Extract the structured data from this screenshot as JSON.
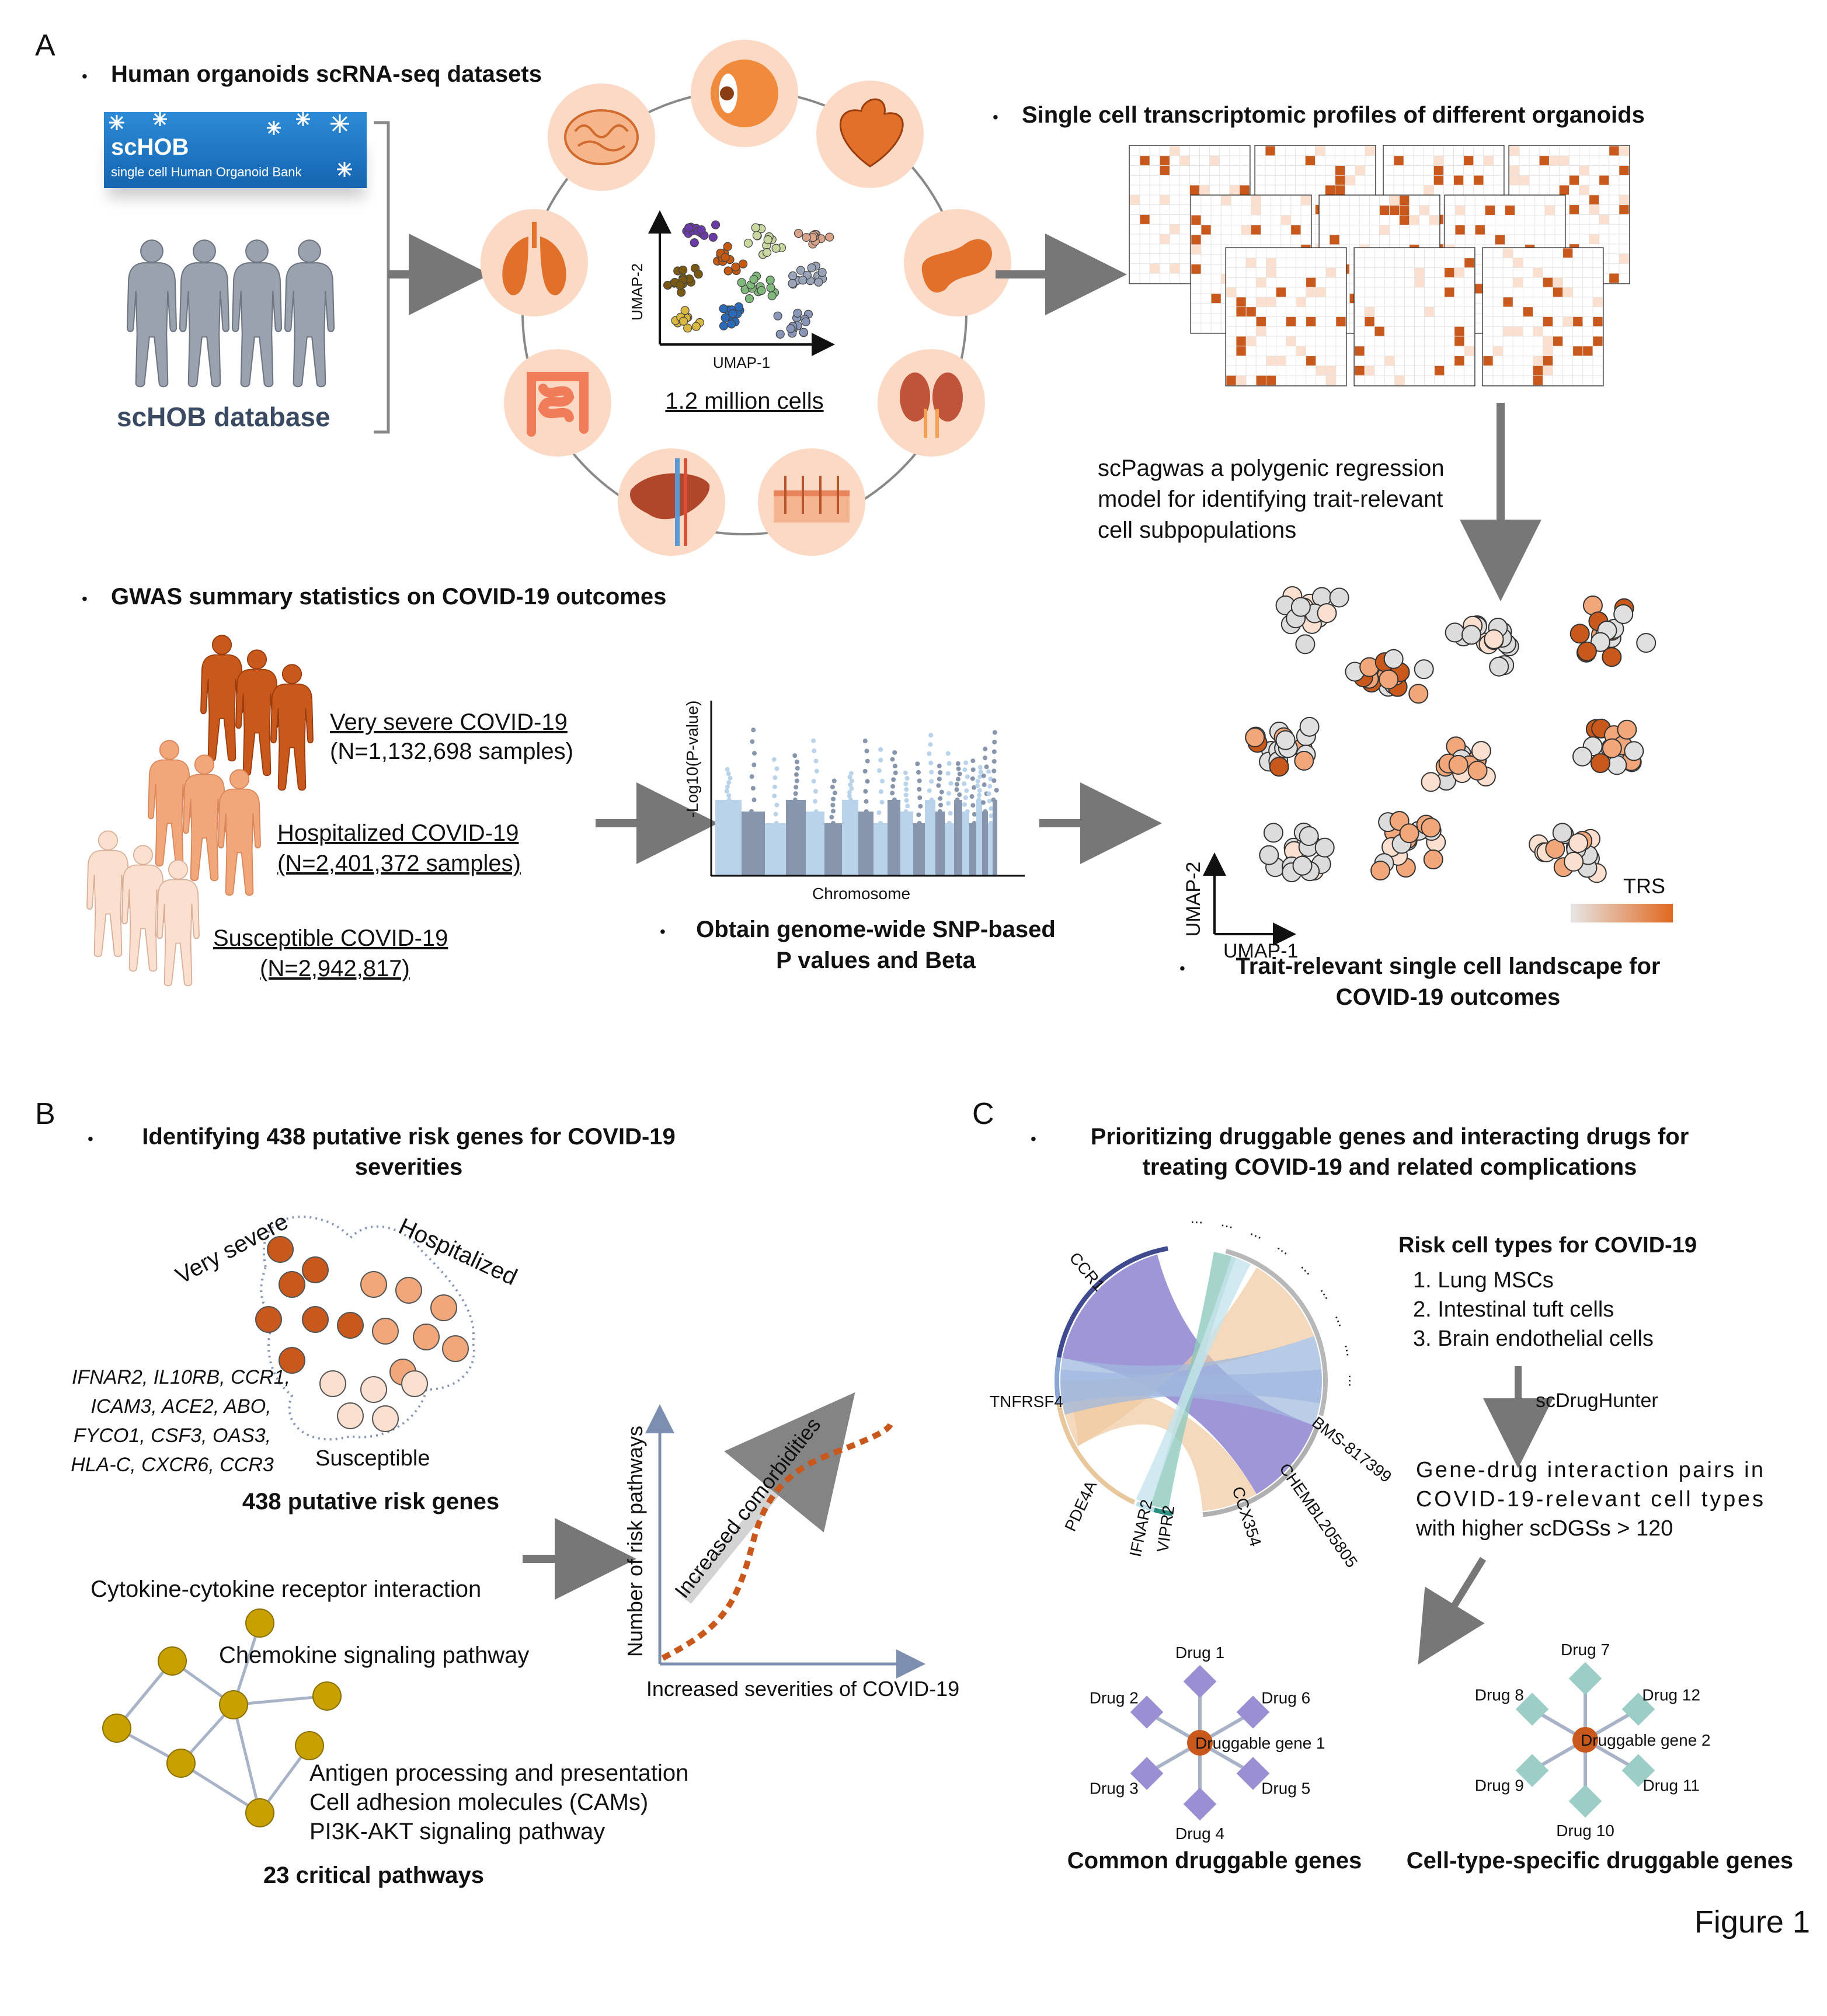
{
  "panels": {
    "a": {
      "letter": "A",
      "title": "Human organoids scRNA-seq datasets",
      "bank_name": "scHOB",
      "bank_full": "single cell Human Organoid Bank",
      "db_label": "scHOB database",
      "umap_x": "UMAP-1",
      "umap_y": "UMAP-2",
      "cells": "1.2 million cells",
      "profiles_title": "Single cell transcriptomic profiles of different organoids",
      "scpagwas": [
        "scPagwas a polygenic regression",
        "model for identifying trait-relevant",
        "cell subpopulations"
      ],
      "gwas_title": "GWAS summary statistics on COVID-19 outcomes",
      "very_severe": "Very severe COVID-19",
      "very_severe_n": "(N=1,132,698 samples)",
      "hospitalized": "Hospitalized COVID-19",
      "hospitalized_n": "(N=2,401,372 samples)",
      "susceptible": "Susceptible COVID-19",
      "susceptible_n": "(N=2,942,817)",
      "manhattan_y": "-Log10(P-value)",
      "manhattan_x": "Chromosome",
      "obtain": [
        "Obtain genome-wide SNP-based",
        "P values and Beta"
      ],
      "trs": "TRS",
      "landscape": [
        "Trait-relevant single cell landscape for",
        "COVID-19 outcomes"
      ]
    },
    "b": {
      "letter": "B",
      "title": [
        "Identifying 438 putative risk genes for COVID-19",
        "severities"
      ],
      "very_severe": "Very severe",
      "hospitalized": "Hospitalized",
      "susceptible": "Susceptible",
      "genes": [
        "IFNAR2, IL10RB, CCR1,",
        "ICAM3, ACE2, ABO,",
        "FYCO1, CSF3, OAS3,",
        "HLA-C, CXCR6, CCR3"
      ],
      "risk_genes": "438 putative risk genes",
      "pathways": [
        "Cytokine-cytokine receptor interaction",
        "Chemokine signaling pathway",
        "Antigen processing and presentation",
        "Cell adhesion molecules (CAMs)",
        "PI3K-AKT signaling pathway"
      ],
      "critical": "23 critical pathways",
      "y_axis": "Number of risk pathways",
      "x_axis": "Increased severities of COVID-19",
      "comorb": "Increased comorbidities"
    },
    "c": {
      "letter": "C",
      "title": [
        "Prioritizing druggable genes and interacting drugs for",
        "treating COVID-19 and related complications"
      ],
      "chord_labels": [
        "CCR1",
        "TNFRSF4",
        "PDE4A",
        "IFNAR2",
        "VIPR2",
        "CCX354",
        "CHEMBL205805",
        "BMS-817399"
      ],
      "risk_title": "Risk cell types for COVID-19",
      "risk_list": [
        "1.    Lung MSCs",
        "2.    Intestinal tuft cells",
        "3.    Brain endothelial cells"
      ],
      "tool": "scDrugHunter",
      "pairs": [
        "Gene-drug  interaction  pairs  in",
        "COVID-19-relevant   cell   types",
        "with higher scDGSs > 120"
      ],
      "gene1": "Druggable gene 1",
      "drugs1": [
        "Drug 1",
        "Drug 6",
        "Drug 5",
        "Drug 4",
        "Drug 3",
        "Drug 2"
      ],
      "gene2": "Druggable gene 2",
      "drugs2": [
        "Drug 7",
        "Drug 12",
        "Drug 11",
        "Drug 10",
        "Drug 9",
        "Drug 8"
      ],
      "common": "Common druggable genes",
      "specific": "Cell-type-specific druggable genes"
    }
  },
  "figure_label": "Figure 1",
  "colors": {
    "dark_orange": "#c8581b",
    "mid_orange": "#f2a77b",
    "light_orange": "#fbe0cf",
    "peach_circle": "#fbd9c4",
    "gray_blue": "#8896ad",
    "light_blue": "#b9d3ea",
    "purple": "#9a8fd3",
    "teal": "#9ccdc6",
    "gold": "#c8a100",
    "banner_blue": "#1f78c8"
  },
  "icons": [
    "brain-icon",
    "eye-icon",
    "heart-icon",
    "pancreas-icon",
    "kidney-icon",
    "skin-icon",
    "liver-icon",
    "intestine-icon",
    "lung-icon"
  ]
}
